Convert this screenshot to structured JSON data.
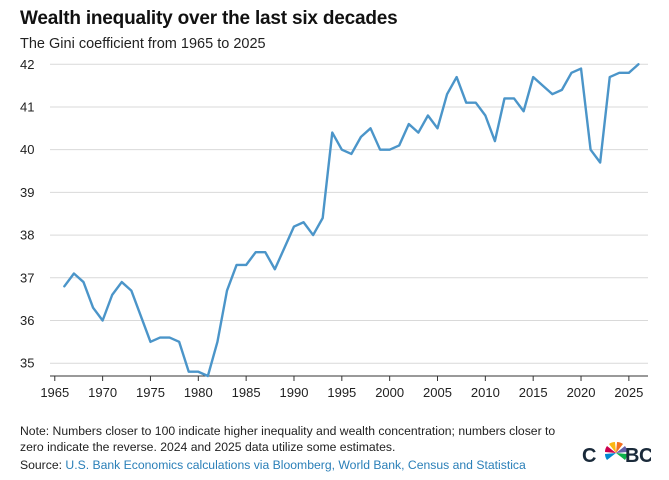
{
  "chart_data": {
    "type": "line",
    "title": "Wealth inequality over the last six decades",
    "subtitle": "The Gini coefficient from 1965 to 2025",
    "xlim": [
      1964.5,
      2027
    ],
    "ylim": [
      34.7,
      42.1
    ],
    "x_ticks": [
      "1965",
      "1970",
      "1975",
      "1980",
      "1985",
      "1990",
      "1995",
      "2000",
      "2005",
      "2010",
      "2015",
      "2020",
      "2025"
    ],
    "y_ticks": [
      "35",
      "36",
      "37",
      "38",
      "39",
      "40",
      "41",
      "42"
    ],
    "grid": "horizontal",
    "line_color": "#4b95c9",
    "series": [
      {
        "x": [
          1966,
          1967,
          1968,
          1969,
          1970,
          1971,
          1972,
          1973,
          1974,
          1975,
          1976,
          1977,
          1978,
          1979,
          1980,
          1981,
          1982,
          1983,
          1984,
          1985,
          1986,
          1987,
          1988,
          1989,
          1990,
          1991,
          1992,
          1993,
          1994,
          1995,
          1996,
          1997,
          1998,
          1999,
          2000,
          2001,
          2002,
          2003,
          2004,
          2005,
          2006,
          2007,
          2008,
          2009,
          2010,
          2011,
          2012,
          2013,
          2014,
          2015,
          2016,
          2017,
          2018,
          2019,
          2020,
          2021,
          2022,
          2023,
          2024,
          2025,
          2026
        ],
        "values": [
          36.8,
          37.1,
          36.9,
          36.3,
          36.0,
          36.6,
          36.9,
          36.7,
          36.1,
          35.5,
          35.6,
          35.6,
          35.5,
          34.8,
          34.8,
          34.7,
          35.5,
          36.7,
          37.3,
          37.3,
          37.6,
          37.6,
          37.2,
          37.7,
          38.2,
          38.3,
          38.0,
          38.4,
          40.4,
          40.0,
          39.9,
          40.3,
          40.5,
          40.0,
          40.0,
          40.1,
          40.6,
          40.4,
          40.8,
          40.5,
          41.3,
          41.7,
          41.1,
          41.1,
          40.8,
          40.2,
          41.2,
          41.2,
          40.9,
          41.7,
          41.5,
          41.3,
          41.4,
          41.8,
          41.9,
          40.0,
          39.7,
          41.7,
          41.8,
          41.8,
          42.0
        ]
      }
    ]
  },
  "footer": {
    "note": "Note: Numbers closer to 100 indicate higher inequality and wealth concentration; numbers closer to zero indicate the reverse. 2024 and 2025 data utilize some estimates.",
    "source_label": "Source: ",
    "source_text": "U.S. Bank Economics calculations via Bloomberg, World Bank, Census and Statistica"
  },
  "logo": {
    "text": "CNBC",
    "name": "nbc-peacock-icon"
  }
}
